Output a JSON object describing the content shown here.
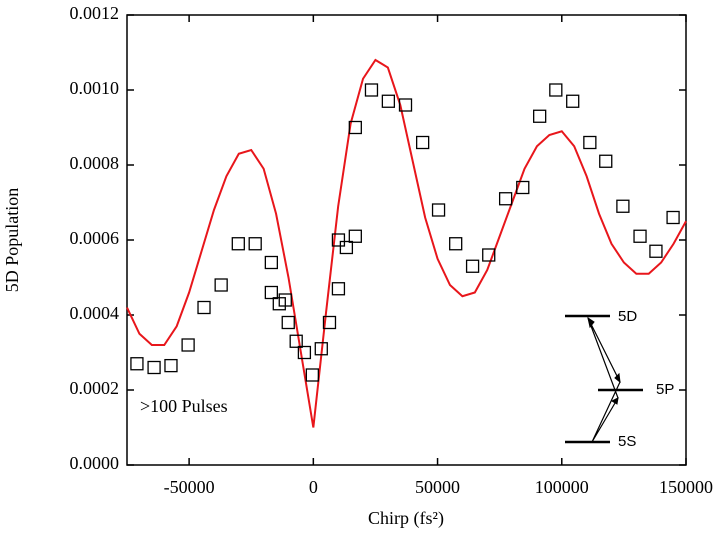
{
  "chart_data": {
    "type": "scatter",
    "xlabel": "Chirp (fs²)",
    "ylabel": "5D Population",
    "annotations": [
      ">100 Pulses",
      "5D",
      "5P",
      "5S"
    ],
    "xlim": [
      -75000,
      150000
    ],
    "ylim": [
      0,
      0.0012
    ],
    "xticks": [
      -50000,
      0,
      50000,
      100000,
      150000
    ],
    "yticks": [
      {
        "value": 0,
        "label": "0.0000"
      },
      {
        "value": 0.0002,
        "label": "0.0002"
      },
      {
        "value": 0.0004,
        "label": "0.0004"
      },
      {
        "value": 0.0006,
        "label": "0.0006"
      },
      {
        "value": 0.0008,
        "label": "0.0008"
      },
      {
        "value": 0.001,
        "label": "0.0010"
      },
      {
        "value": 0.0012,
        "label": "0.0012"
      }
    ],
    "series": [
      {
        "type": "scatter",
        "marker": "square",
        "color": "#000000",
        "x": [
          -71000,
          -64100,
          -57300,
          -50400,
          -44000,
          -37100,
          -30200,
          -23400,
          -16900,
          -16900,
          -13700,
          -11300,
          -10100,
          -6900,
          -3600,
          -400,
          3200,
          6500,
          10100,
          10100,
          13300,
          16900,
          16900,
          23400,
          30200,
          37100,
          44000,
          50400,
          57300,
          64100,
          70600,
          77400,
          84300,
          91100,
          97600,
          104400,
          111300,
          117700,
          124600,
          131500,
          137900,
          144800
        ],
        "values": [
          0.00027,
          0.00026,
          0.000265,
          0.00032,
          0.00042,
          0.00048,
          0.00059,
          0.00059,
          0.00054,
          0.00046,
          0.00043,
          0.00044,
          0.00038,
          0.00033,
          0.0003,
          0.00024,
          0.00031,
          0.00038,
          0.00047,
          0.0006,
          0.00058,
          0.00061,
          0.0009,
          0.001,
          0.00097,
          0.00096,
          0.00086,
          0.00068,
          0.00059,
          0.00053,
          0.00056,
          0.00071,
          0.00074,
          0.00093,
          0.001,
          0.00097,
          0.00086,
          0.00081,
          0.00069,
          0.00061,
          0.00057,
          0.00066
        ]
      },
      {
        "type": "line",
        "color": "#e8161b",
        "x": [
          -75000,
          -70000,
          -65000,
          -60000,
          -55000,
          -50000,
          -45000,
          -40000,
          -35000,
          -30000,
          -25000,
          -20000,
          -15000,
          -10000,
          -5000,
          0,
          5000,
          10000,
          15000,
          20000,
          25000,
          30000,
          35000,
          40000,
          45000,
          50000,
          55000,
          60000,
          65000,
          70000,
          75000,
          80000,
          85000,
          90000,
          95000,
          100000,
          105000,
          110000,
          115000,
          120000,
          125000,
          130000,
          135000,
          140000,
          145000,
          150000
        ],
        "values": [
          0.00042,
          0.00035,
          0.00032,
          0.00032,
          0.00037,
          0.00046,
          0.00057,
          0.00068,
          0.00077,
          0.00083,
          0.00084,
          0.00079,
          0.00067,
          0.0005,
          0.0003,
          0.0001,
          0.0004,
          0.00069,
          0.00091,
          0.00103,
          0.00108,
          0.00106,
          0.00096,
          0.00081,
          0.00066,
          0.00055,
          0.00048,
          0.00045,
          0.00046,
          0.00052,
          0.00061,
          0.0007,
          0.00079,
          0.00085,
          0.00088,
          0.00089,
          0.00085,
          0.00077,
          0.00067,
          0.00059,
          0.00054,
          0.00051,
          0.00051,
          0.00054,
          0.00059,
          0.00065
        ]
      }
    ]
  }
}
